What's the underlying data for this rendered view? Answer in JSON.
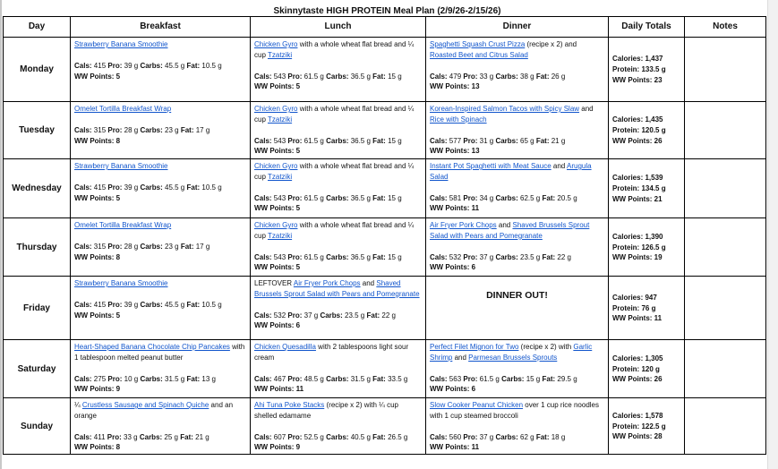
{
  "title": "Skinnytaste HIGH PROTEIN Meal Plan (2/9/26-2/15/26)",
  "headers": [
    "Day",
    "Breakfast",
    "Lunch",
    "Dinner",
    "Daily Totals",
    "Notes"
  ],
  "labels": {
    "cals": "Cals:",
    "pro": "Pro:",
    "carbs": "Carbs:",
    "fat": "Fat:",
    "ww": "WW Points:",
    "calories": "Calories:",
    "protein": "Protein:"
  },
  "colors": {
    "link": "#1155cc",
    "border": "#000000"
  },
  "rows": [
    {
      "day": "Monday",
      "breakfast": {
        "parts": [
          {
            "t": "Strawberry Banana Smoothie",
            "link": true
          }
        ],
        "cals": "415",
        "pro": "39 g",
        "carbs": "45.5 g",
        "fat": "10.5 g",
        "ww": "5"
      },
      "lunch": {
        "parts": [
          {
            "t": "Chicken Gyro",
            "link": true
          },
          {
            "t": " with a whole wheat flat bread and ¼ cup "
          },
          {
            "t": "Tzatziki",
            "link": true
          }
        ],
        "cals": "543",
        "pro": "61.5 g",
        "carbs": "36.5 g",
        "fat": "15 g",
        "ww": "5"
      },
      "dinner": {
        "parts": [
          {
            "t": "Spaghetti Squash Crust Pizza",
            "link": true
          },
          {
            "t": " (recipe x 2) and "
          },
          {
            "t": "Roasted Beet and Citrus Salad",
            "link": true
          }
        ],
        "cals": "479",
        "pro": "33 g",
        "carbs": "38 g",
        "fat": "26 g",
        "ww": "13"
      },
      "totals": {
        "calories": "1,437",
        "protein": "133.5 g",
        "ww": "23"
      },
      "notes": ""
    },
    {
      "day": "Tuesday",
      "breakfast": {
        "parts": [
          {
            "t": "Omelet Tortilla Breakfast Wrap",
            "link": true
          }
        ],
        "cals": "315",
        "pro": "28 g",
        "carbs": "23 g",
        "fat": "17 g",
        "ww": "8"
      },
      "lunch": {
        "parts": [
          {
            "t": "Chicken Gyro",
            "link": true
          },
          {
            "t": " with a whole wheat flat bread and ¼ cup "
          },
          {
            "t": "Tzatziki",
            "link": true
          }
        ],
        "cals": "543",
        "pro": "61.5 g",
        "carbs": "36.5 g",
        "fat": "15 g",
        "ww": "5"
      },
      "dinner": {
        "parts": [
          {
            "t": "Korean-Inspired Salmon Tacos with Spicy Slaw",
            "link": true
          },
          {
            "t": " and "
          },
          {
            "t": "Rice with Spinach",
            "link": true
          }
        ],
        "cals": "577",
        "pro": "31 g",
        "carbs": "65 g",
        "fat": "21 g",
        "ww": "13"
      },
      "totals": {
        "calories": "1,435",
        "protein": "120.5 g",
        "ww": "26"
      },
      "notes": ""
    },
    {
      "day": "Wednesday",
      "breakfast": {
        "parts": [
          {
            "t": "Strawberry Banana Smoothie",
            "link": true
          }
        ],
        "cals": "415",
        "pro": "39 g",
        "carbs": "45.5 g",
        "fat": "10.5 g",
        "ww": "5"
      },
      "lunch": {
        "parts": [
          {
            "t": "Chicken Gyro",
            "link": true
          },
          {
            "t": " with a whole wheat flat bread and ¼ cup "
          },
          {
            "t": "Tzatziki",
            "link": true
          }
        ],
        "cals": "543",
        "pro": "61.5 g",
        "carbs": "36.5 g",
        "fat": "15 g",
        "ww": "5"
      },
      "dinner": {
        "parts": [
          {
            "t": "Instant Pot Spaghetti with Meat Sauce",
            "link": true
          },
          {
            "t": " and "
          },
          {
            "t": "Arugula Salad",
            "link": true
          }
        ],
        "cals": "581",
        "pro": "34 g",
        "carbs": "62.5 g",
        "fat": "20.5 g",
        "ww": "11"
      },
      "totals": {
        "calories": "1,539",
        "protein": "134.5 g",
        "ww": "21"
      },
      "notes": ""
    },
    {
      "day": "Thursday",
      "breakfast": {
        "parts": [
          {
            "t": "Omelet Tortilla Breakfast Wrap",
            "link": true
          }
        ],
        "cals": "315",
        "pro": "28 g",
        "carbs": "23 g",
        "fat": "17 g",
        "ww": "8"
      },
      "lunch": {
        "parts": [
          {
            "t": "Chicken Gyro",
            "link": true
          },
          {
            "t": " with a whole wheat flat bread and ¼ cup "
          },
          {
            "t": "Tzatziki",
            "link": true
          }
        ],
        "cals": "543",
        "pro": "61.5 g",
        "carbs": "36.5 g",
        "fat": "15 g",
        "ww": "5"
      },
      "dinner": {
        "parts": [
          {
            "t": "Air Fryer Pork Chops",
            "link": true
          },
          {
            "t": " and "
          },
          {
            "t": "Shaved Brussels Sprout Salad with Pears and Pomegranate",
            "link": true
          }
        ],
        "cals": "532",
        "pro": "37 g",
        "carbs": "23.5 g",
        "fat": "22 g",
        "ww": "6"
      },
      "totals": {
        "calories": "1,390",
        "protein": "126.5 g",
        "ww": "19"
      },
      "notes": ""
    },
    {
      "day": "Friday",
      "breakfast": {
        "parts": [
          {
            "t": "Strawberry Banana Smoothie",
            "link": true
          }
        ],
        "cals": "415",
        "pro": "39 g",
        "carbs": "45.5 g",
        "fat": "10.5 g",
        "ww": "5"
      },
      "lunch": {
        "parts": [
          {
            "t": "LEFTOVER "
          },
          {
            "t": "Air Fryer Pork Chops",
            "link": true
          },
          {
            "t": " and "
          },
          {
            "t": "Shaved Brussels Sprout Salad with Pears and Pomegranate",
            "link": true
          }
        ],
        "cals": "532",
        "pro": "37 g",
        "carbs": "23.5 g",
        "fat": "22 g",
        "ww": "6"
      },
      "dinner_out": "DINNER OUT!",
      "totals": {
        "calories": "947",
        "protein": "76 g",
        "ww": "11"
      },
      "notes": ""
    },
    {
      "day": "Saturday",
      "breakfast": {
        "parts": [
          {
            "t": "Heart-Shaped Banana Chocolate Chip Pancakes",
            "link": true
          },
          {
            "t": " with 1 tablespoon melted peanut butter"
          }
        ],
        "cals": "275",
        "pro": "10 g",
        "carbs": "31.5 g",
        "fat": "13 g",
        "ww": "9"
      },
      "lunch": {
        "parts": [
          {
            "t": "Chicken Quesadilla",
            "link": true
          },
          {
            "t": " with 2 tablespoons light sour cream"
          }
        ],
        "cals": "467",
        "pro": "48.5 g",
        "carbs": "31.5 g",
        "fat": "33.5 g",
        "ww": "11"
      },
      "dinner": {
        "parts": [
          {
            "t": "Perfect Filet Mignon for Two",
            "link": true
          },
          {
            "t": " (recipe x 2) with "
          },
          {
            "t": "Garlic Shrimp",
            "link": true
          },
          {
            "t": " and "
          },
          {
            "t": "Parmesan Brussels Sprouts",
            "link": true
          }
        ],
        "cals": "563",
        "pro": "61.5 g",
        "carbs": "15 g",
        "fat": "29.5 g",
        "ww": "6"
      },
      "totals": {
        "calories": "1,305",
        "protein": "120 g",
        "ww": "26"
      },
      "notes": ""
    },
    {
      "day": "Sunday",
      "breakfast": {
        "parts": [
          {
            "t": "¼ "
          },
          {
            "t": "Crustless Sausage and Spinach Quiche",
            "link": true
          },
          {
            "t": " and an orange"
          }
        ],
        "cals": "411",
        "pro": "33 g",
        "carbs": "25 g",
        "fat": "21 g",
        "ww": "8"
      },
      "lunch": {
        "parts": [
          {
            "t": "Ahi Tuna Poke Stacks",
            "link": true
          },
          {
            "t": " (recipe x 2) with ¼ cup shelled edamame"
          }
        ],
        "cals": "607",
        "pro": "52.5 g",
        "carbs": "40.5 g",
        "fat": "26.5 g",
        "ww": "9"
      },
      "dinner": {
        "parts": [
          {
            "t": "Slow Cooker Peanut Chicken",
            "link": true
          },
          {
            "t": " over 1 cup rice noodles with 1 cup steamed broccoli"
          }
        ],
        "cals": "560",
        "pro": "37 g",
        "carbs": "62 g",
        "fat": "18 g",
        "ww": "11"
      },
      "totals": {
        "calories": "1,578",
        "protein": "122.5 g",
        "ww": "28"
      },
      "notes": ""
    }
  ]
}
